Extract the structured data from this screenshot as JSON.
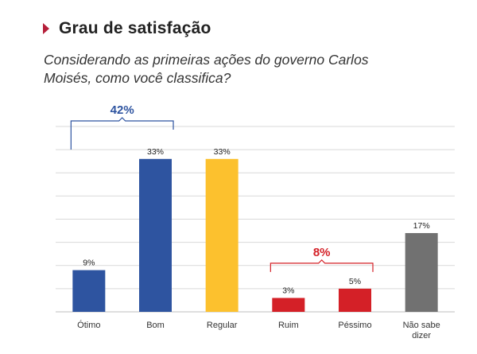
{
  "header": {
    "title": "Grau de satisfação",
    "subtitle": "Considerando as primeiras ações do governo Carlos Moisés, como você classifica?"
  },
  "chart_data": {
    "type": "bar",
    "categories": [
      "Ótimo",
      "Bom",
      "Regular",
      "Ruim",
      "Péssimo",
      "Não sabe dizer"
    ],
    "values": [
      9,
      33,
      33,
      3,
      5,
      17
    ],
    "value_labels": [
      "9%",
      "33%",
      "33%",
      "3%",
      "5%",
      "17%"
    ],
    "colors": [
      "#2e54a0",
      "#2e54a0",
      "#fcc12e",
      "#d42027",
      "#d42027",
      "#717171"
    ],
    "ylim": [
      0,
      40
    ],
    "grid": true,
    "groups": [
      {
        "label": "42%",
        "from": 0,
        "to": 1,
        "color": "#2e54a0"
      },
      {
        "label": "8%",
        "from": 3,
        "to": 4,
        "color": "#d42027"
      }
    ]
  }
}
